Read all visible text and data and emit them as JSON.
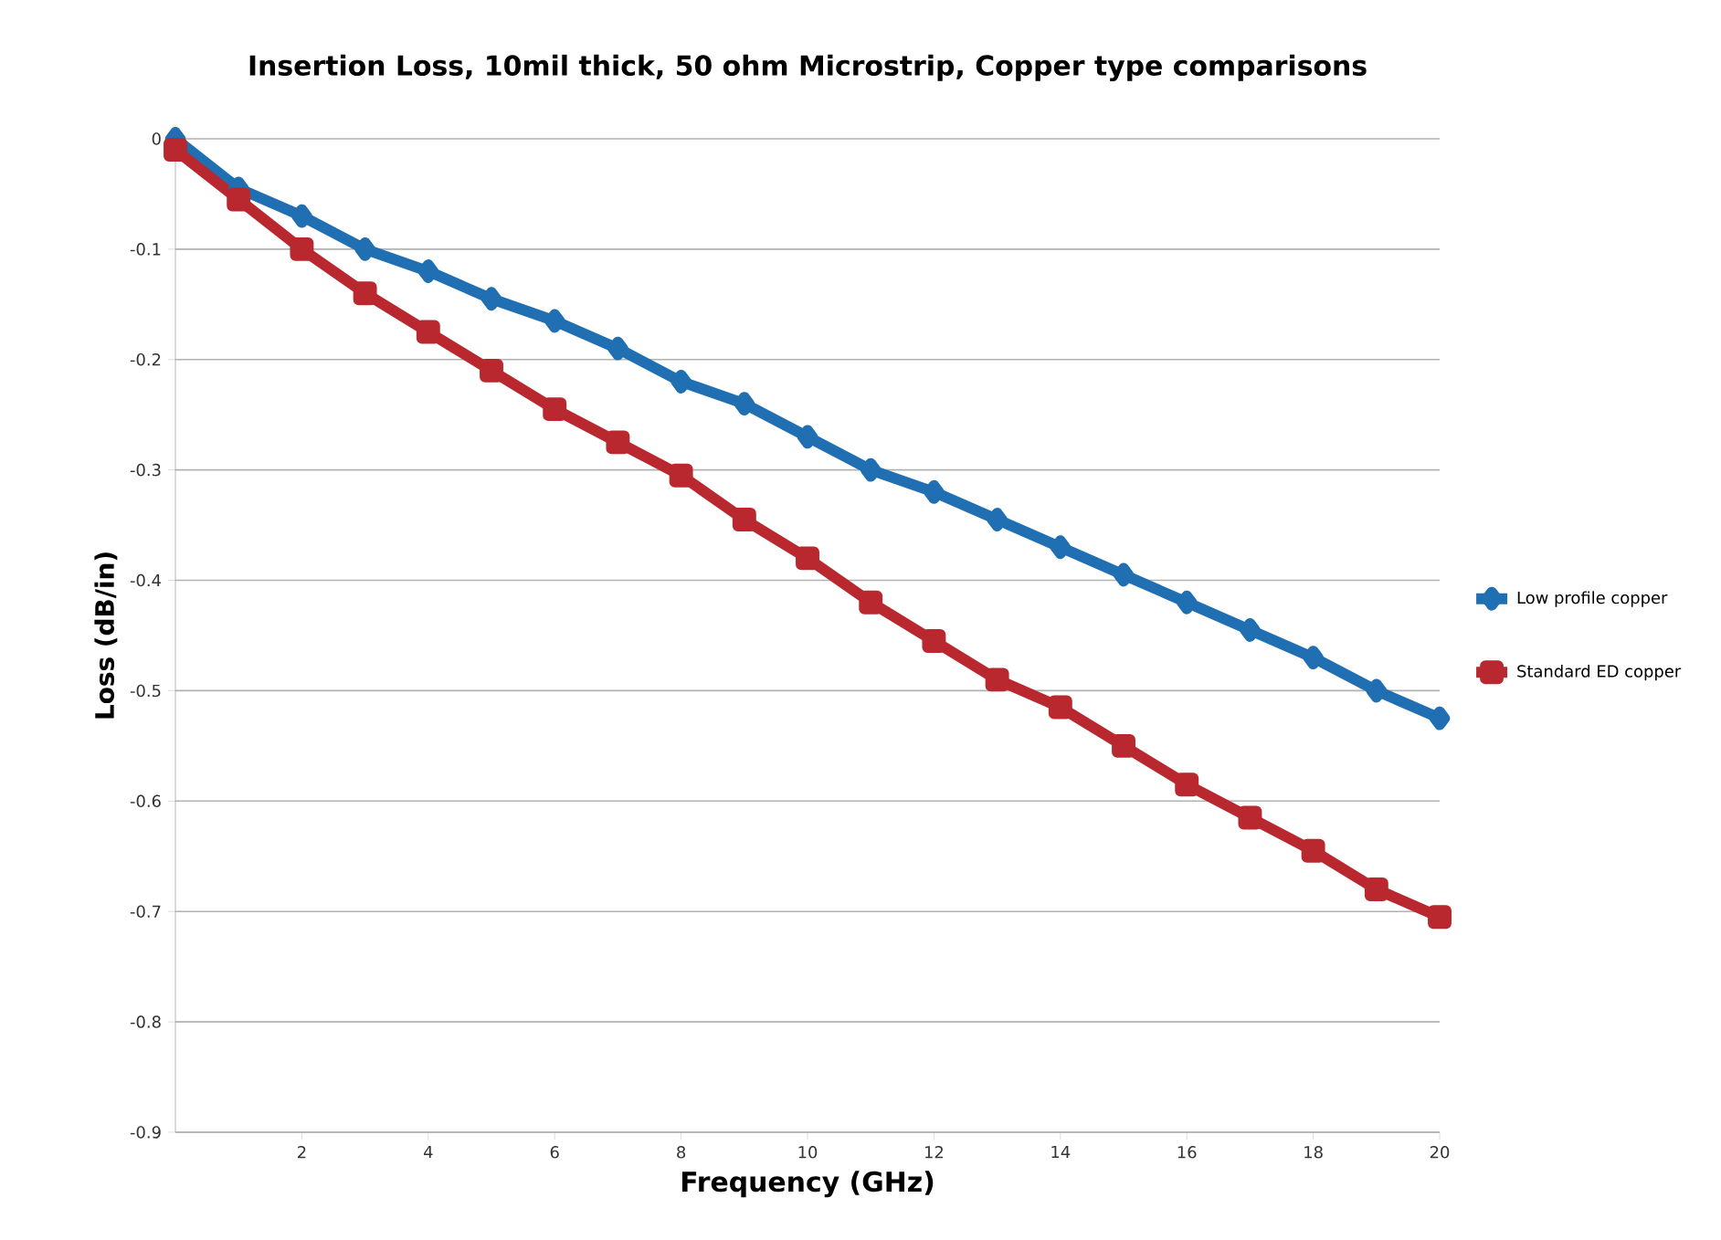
{
  "chart_data": {
    "type": "line",
    "title": "Insertion Loss, 10mil thick, 50 ohm Microstrip, Copper type comparisons",
    "xlabel": "Frequency (GHz)",
    "ylabel": "Loss (dB/in)",
    "x": [
      0,
      1,
      2,
      3,
      4,
      5,
      6,
      7,
      8,
      9,
      10,
      11,
      12,
      13,
      14,
      15,
      16,
      17,
      18,
      19,
      20
    ],
    "series": [
      {
        "name": "Low profile copper",
        "color": "#1f6fb2",
        "marker": "diamond",
        "values": [
          0,
          -0.045,
          -0.07,
          -0.1,
          -0.12,
          -0.145,
          -0.165,
          -0.19,
          -0.22,
          -0.24,
          -0.27,
          -0.3,
          -0.32,
          -0.345,
          -0.37,
          -0.395,
          -0.42,
          -0.445,
          -0.47,
          -0.5,
          -0.525
        ]
      },
      {
        "name": "Standard ED copper",
        "color": "#b8282e",
        "marker": "square",
        "values": [
          -0.01,
          -0.055,
          -0.1,
          -0.14,
          -0.175,
          -0.21,
          -0.245,
          -0.275,
          -0.305,
          -0.345,
          -0.38,
          -0.42,
          -0.455,
          -0.49,
          -0.515,
          -0.55,
          -0.585,
          -0.615,
          -0.645,
          -0.68,
          -0.705
        ]
      }
    ],
    "xlim": [
      0,
      20
    ],
    "xticks": [
      2,
      4,
      6,
      8,
      10,
      12,
      14,
      16,
      18,
      20
    ],
    "ylim": [
      -0.9,
      0
    ],
    "yticks": [
      0,
      -0.1,
      -0.2,
      -0.3,
      -0.4,
      -0.5,
      -0.6,
      -0.7,
      -0.8,
      -0.9
    ],
    "grid": "y",
    "legend": "right",
    "line_style": "solid"
  }
}
